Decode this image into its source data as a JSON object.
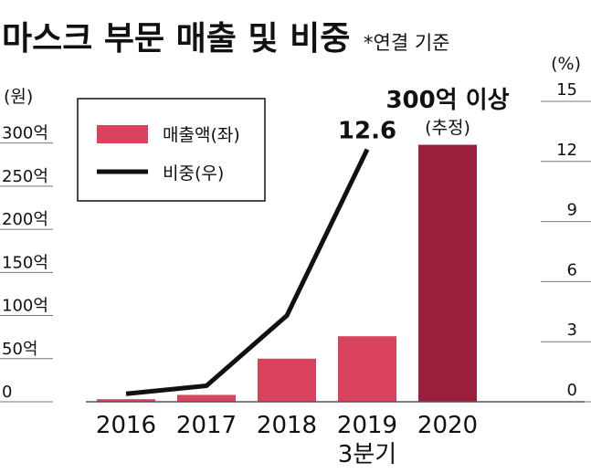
{
  "chart_data": {
    "type": "bar",
    "title": "마스크 부문 매출 및 비중",
    "subtitle": "*연결 기준",
    "y_unit": "(원)",
    "y2_unit": "(%)",
    "categories": [
      "2016",
      "2017",
      "2018",
      "2019",
      "2020"
    ],
    "annotations": [
      "3분기",
      "300억 이상",
      "(추정)"
    ],
    "series": [
      {
        "name": "매출액(좌)",
        "type": "bar",
        "color": "#d9435e",
        "colors": [
          "#d9435e",
          "#d9435e",
          "#d9435e",
          "#d9435e",
          "#9b1f3d"
        ],
        "values": [
          3,
          8,
          50,
          76,
          298
        ]
      },
      {
        "name": "비중(우)",
        "type": "line",
        "axis": "y2",
        "color": "#111111",
        "values": [
          0.4,
          0.8,
          4.3,
          12.6,
          null
        ]
      }
    ],
    "ylim": [
      0,
      360
    ],
    "yticks": [
      0,
      {
        "value": 50,
        "label": "50억"
      },
      {
        "value": 100,
        "label": "100억"
      },
      {
        "value": 150,
        "label": "150억"
      },
      {
        "value": 200,
        "label": "200억"
      },
      {
        "value": 250,
        "label": "250억"
      },
      {
        "value": 300,
        "label": "300억"
      }
    ],
    "y2lim": [
      0,
      15.5
    ],
    "y2ticks": [
      0,
      3,
      6,
      9,
      12,
      15
    ]
  }
}
